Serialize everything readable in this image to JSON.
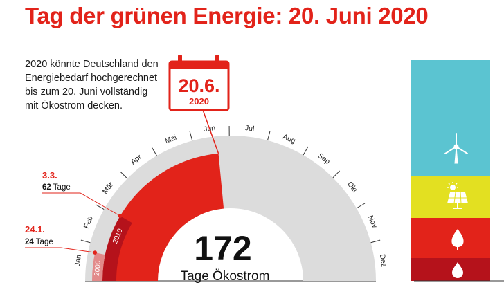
{
  "title": "Tag der grünen Energie: 20. Juni 2020",
  "intro": "2020 könnte Deutschland den Energiebedarf hochgerechnet bis zum 20. Juni vollständig mit Ökostrom decken.",
  "colors": {
    "red": "#e2231a",
    "dark_red": "#b5121b",
    "pale_red": "#e28a8a",
    "grey": "#dcdcdc",
    "wind": "#5bc4d1",
    "solar": "#e3e021"
  },
  "chart_data": {
    "type": "radial-bar",
    "total_days": 366,
    "months": [
      "Jan",
      "Feb",
      "Mär",
      "Apr",
      "Mai",
      "Jun",
      "Jul",
      "Aug",
      "Sep",
      "Okt",
      "Nov",
      "Dez"
    ],
    "series": [
      {
        "name": "2000",
        "days": 24,
        "date_label": "24.1.",
        "days_number": "24",
        "days_unit": "Tage"
      },
      {
        "name": "2010",
        "days": 62,
        "date_label": "3.3.",
        "days_number": "62",
        "days_unit": "Tage"
      },
      {
        "name": "2020",
        "days": 172,
        "date_label": "20.6.",
        "year_label": "2020"
      }
    ],
    "highlight": {
      "value": "172",
      "label": "Tage Ökostrom"
    },
    "energy_mix": [
      {
        "icon": "wind-turbine-icon",
        "color": "#5bc4d1",
        "share": 0.5
      },
      {
        "icon": "solar-panel-icon",
        "color": "#e3e021",
        "share": 0.18
      },
      {
        "icon": "biomass-leaf-icon",
        "color": "#e2231a",
        "share": 0.19
      },
      {
        "icon": "hydro-drop-icon",
        "color": "#b5121b",
        "share": 0.1
      }
    ]
  }
}
